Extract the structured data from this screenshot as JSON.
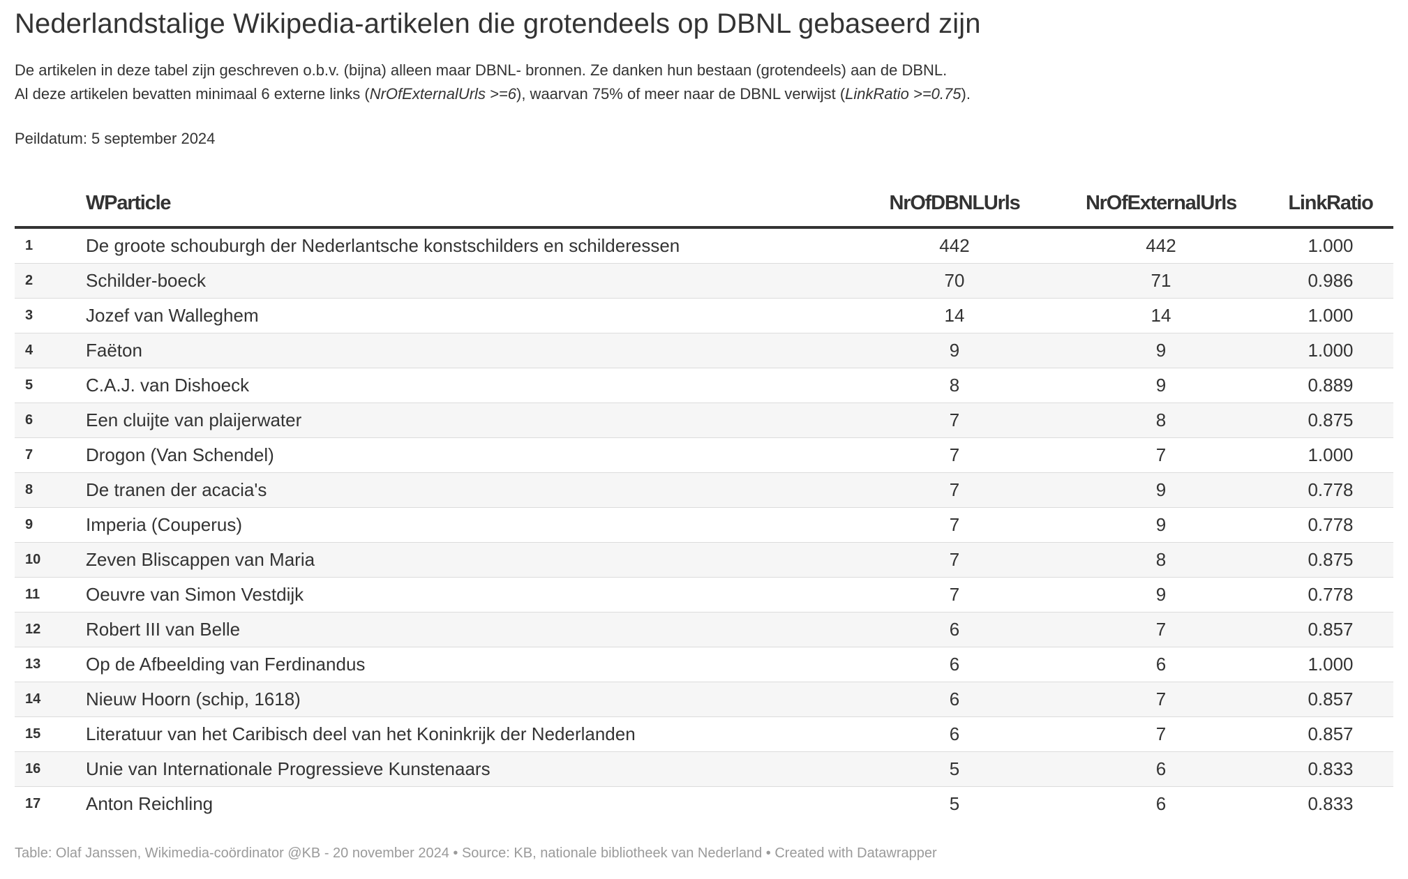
{
  "title": "Nederlandstalige Wikipedia-artikelen die grotendeels op DBNL gebaseerd zijn",
  "description": {
    "line1": "De artikelen in deze tabel zijn geschreven o.b.v. (bijna) alleen maar DBNL- bronnen. Ze danken hun bestaan (grotendeels) aan de DBNL.",
    "line2_a": "Al deze artikelen bevatten minimaal 6 externe links (",
    "line2_b": "NrOfExternalUrls >=6",
    "line2_c": "), waarvan 75% of meer naar de DBNL verwijst (",
    "line2_d": "LinkRatio >=0.75",
    "line2_e": ")."
  },
  "peildatum": "Peildatum: 5 september 2024",
  "footer": "Table: Olaf Janssen, Wikimedia-coördinator @KB - 20 november 2024 • Source: KB, nationale bibliotheek van Nederland • Created with Datawrapper",
  "chart_data": {
    "type": "table",
    "columns": [
      "",
      "WParticle",
      "NrOfDBNLUrls",
      "NrOfExternalUrls",
      "LinkRatio"
    ],
    "rows": [
      [
        "1",
        "De groote schouburgh der Nederlantsche konstschilders en schilderessen",
        "442",
        "442",
        "1.000"
      ],
      [
        "2",
        "Schilder-boeck",
        "70",
        "71",
        "0.986"
      ],
      [
        "3",
        "Jozef van Walleghem",
        "14",
        "14",
        "1.000"
      ],
      [
        "4",
        "Faëton",
        "9",
        "9",
        "1.000"
      ],
      [
        "5",
        "C.A.J. van Dishoeck",
        "8",
        "9",
        "0.889"
      ],
      [
        "6",
        "Een cluijte van plaijerwater",
        "7",
        "8",
        "0.875"
      ],
      [
        "7",
        "Drogon (Van Schendel)",
        "7",
        "7",
        "1.000"
      ],
      [
        "8",
        "De tranen der acacia's",
        "7",
        "9",
        "0.778"
      ],
      [
        "9",
        "Imperia (Couperus)",
        "7",
        "9",
        "0.778"
      ],
      [
        "10",
        "Zeven Bliscappen van Maria",
        "7",
        "8",
        "0.875"
      ],
      [
        "11",
        "Oeuvre van Simon Vestdijk",
        "7",
        "9",
        "0.778"
      ],
      [
        "12",
        "Robert III van Belle",
        "6",
        "7",
        "0.857"
      ],
      [
        "13",
        "Op de Afbeelding van Ferdinandus",
        "6",
        "6",
        "1.000"
      ],
      [
        "14",
        "Nieuw Hoorn (schip, 1618)",
        "6",
        "7",
        "0.857"
      ],
      [
        "15",
        "Literatuur van het Caribisch deel van het Koninkrijk der Nederlanden",
        "6",
        "7",
        "0.857"
      ],
      [
        "16",
        "Unie van Internationale Progressieve Kunstenaars",
        "5",
        "6",
        "0.833"
      ],
      [
        "17",
        "Anton Reichling",
        "5",
        "6",
        "0.833"
      ]
    ]
  }
}
